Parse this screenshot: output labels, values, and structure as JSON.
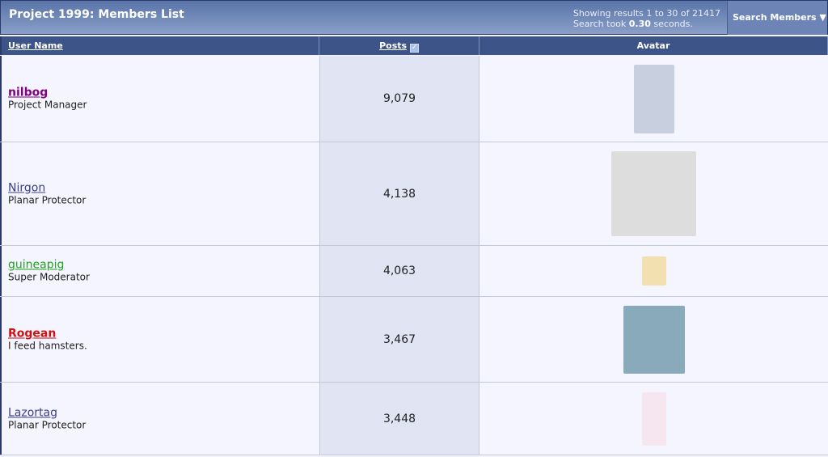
{
  "header": {
    "title": "Project 1999: Members List",
    "results": "Showing results 1 to 30 of 21417",
    "search_prefix": "Search took ",
    "search_time": "0.30",
    "search_suffix": " seconds.",
    "search_button": "Search Members ▼"
  },
  "columns": {
    "user": "User Name",
    "posts": "Posts",
    "avatar": "Avatar",
    "sort_icon": "sort-checkbox-icon"
  },
  "members": [
    {
      "name": "nilbog",
      "title": "Project Manager",
      "posts": "9,079",
      "color": "#800080",
      "bold": true
    },
    {
      "name": "Nirgon",
      "title": "Planar Protector",
      "posts": "4,138",
      "color": "#3a3f8a",
      "bold": false
    },
    {
      "name": "guineapig",
      "title": "Super Moderator",
      "posts": "4,063",
      "color": "#22a022",
      "bold": false
    },
    {
      "name": "Rogean",
      "title": "I feed hamsters.",
      "posts": "3,467",
      "color": "#d01010",
      "bold": true
    },
    {
      "name": "Lazortag",
      "title": "Planar Protector",
      "posts": "3,448",
      "color": "#3a3f8a",
      "bold": false
    }
  ]
}
